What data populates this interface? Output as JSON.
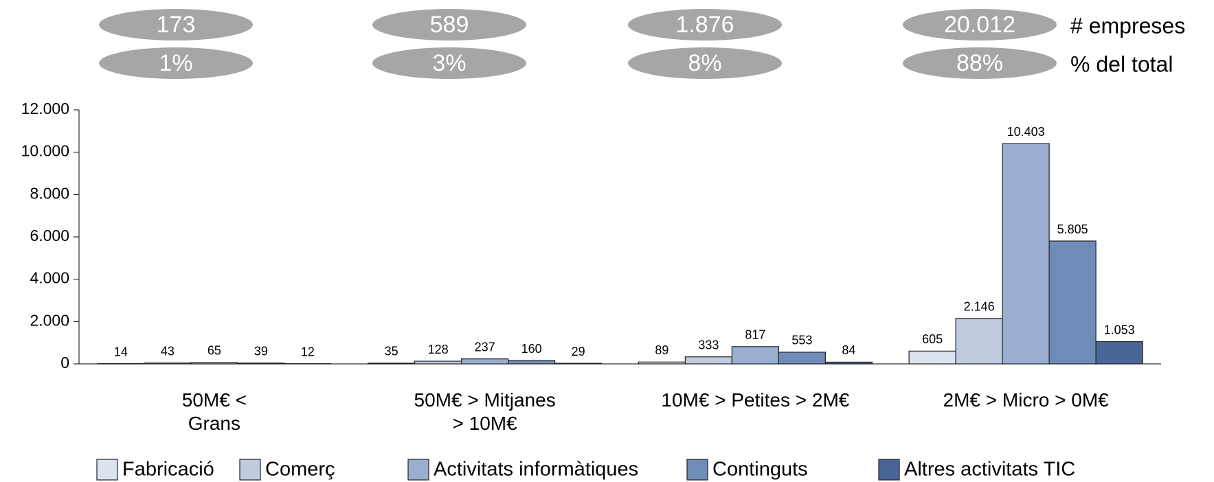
{
  "chart_data": {
    "type": "bar",
    "summary": [
      {
        "label": "# empreses",
        "values": [
          173,
          589,
          1876,
          20012
        ],
        "value_labels": [
          "173",
          "589",
          "1.876",
          "20.012"
        ]
      },
      {
        "label": "% del total",
        "values": [
          1,
          3,
          8,
          88
        ],
        "value_labels": [
          "1%",
          "3%",
          "8%",
          "88%"
        ]
      }
    ],
    "categories": [
      "50M€ <\nGrans",
      "50M€ > Mitjanes\n> 10M€",
      "10M€ > Petites > 2M€",
      "2M€ > Micro > 0M€"
    ],
    "series": [
      {
        "name": "Fabricació",
        "color": "#dce3ee",
        "values": [
          14,
          35,
          89,
          605
        ]
      },
      {
        "name": "Comerç",
        "color": "#c0cbe0",
        "values": [
          43,
          128,
          333,
          2146
        ],
        "value_labels": [
          "43",
          "128",
          "333",
          "2.146"
        ]
      },
      {
        "name": "Activitats informàtiques",
        "color": "#9aaecf",
        "values": [
          65,
          237,
          817,
          10403
        ],
        "value_labels": [
          "65",
          "237",
          "817",
          "10.403"
        ]
      },
      {
        "name": "Continguts",
        "color": "#6f8bb8",
        "values": [
          39,
          160,
          553,
          5805
        ],
        "value_labels": [
          "39",
          "160",
          "553",
          "5.805"
        ]
      },
      {
        "name": "Altres activitats TIC",
        "color": "#4a6699",
        "values": [
          12,
          29,
          84,
          1053
        ],
        "value_labels": [
          "12",
          "29",
          "84",
          "1.053"
        ]
      }
    ],
    "ylim": [
      0,
      12000
    ],
    "yticks": [
      0,
      {
        "value": 2000,
        "label": "2.000"
      },
      {
        "value": 4000,
        "label": "4.000"
      },
      {
        "value": 6000,
        "label": "6.000"
      },
      {
        "value": 8000,
        "label": "8.000"
      },
      {
        "value": 10000,
        "label": "10.000"
      },
      {
        "value": 12000,
        "label": "12.000"
      }
    ],
    "legend": "bottom"
  }
}
